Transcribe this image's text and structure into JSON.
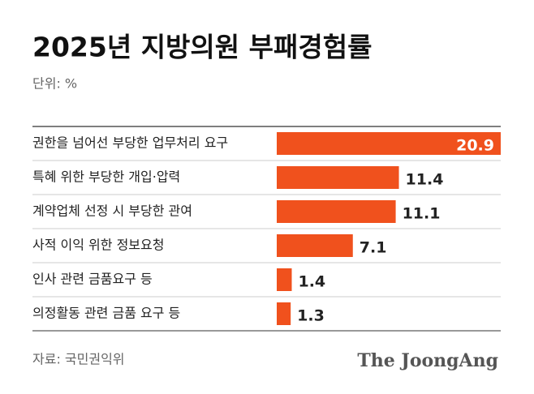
{
  "chart_data": {
    "type": "bar",
    "orientation": "horizontal",
    "title": "2025년 지방의원 부패경험률",
    "subtitle": "단위: %",
    "source": "자료: 국민권익위",
    "brand": "The JoongAng",
    "categories": [
      "권한을 넘어선 부당한 업무처리 요구",
      "특혜 위한 부당한 개입·압력",
      "계약업체 선정 시 부당한 관여",
      "사적 이익 위한 정보요청",
      "인사 관련 금품요구 등",
      "의정활동 관련 금품 요구 등"
    ],
    "values": [
      20.9,
      11.4,
      11.1,
      7.1,
      1.4,
      1.3
    ],
    "color": "#f0511d"
  }
}
